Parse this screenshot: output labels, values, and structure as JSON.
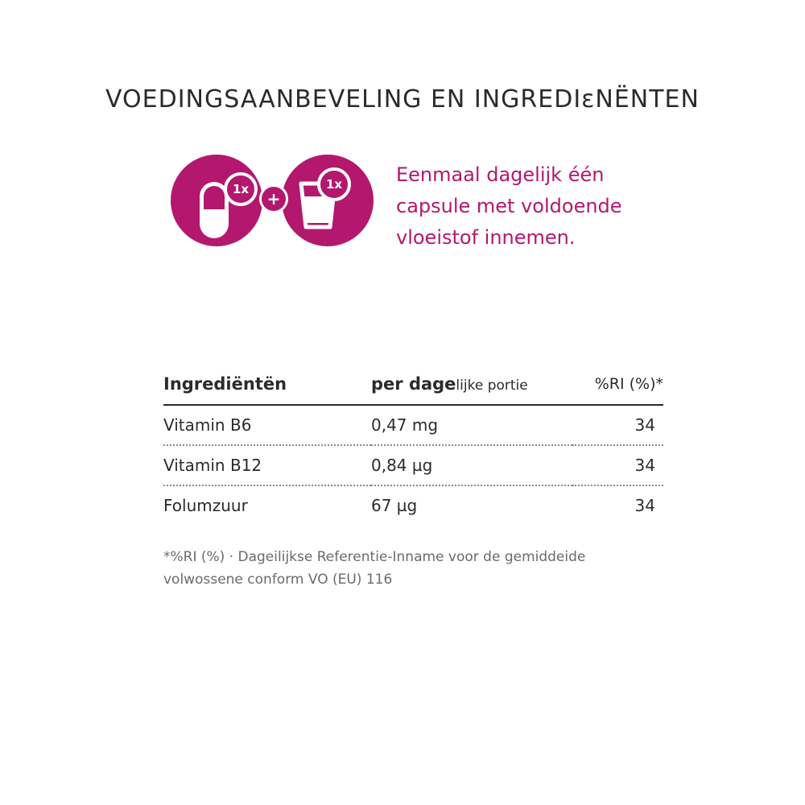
{
  "colors": {
    "accent": "#b3186e",
    "text": "#2b2b2b",
    "muted": "#6b6b6b"
  },
  "title": "VOEDINGSAANBEVELING EN INGREDIɛNËNTEN",
  "dosage": {
    "capsule_icon": "capsule-icon",
    "glass_icon": "glass-of-water-icon",
    "capsule_badge": "1x",
    "glass_badge": "1x",
    "plus": "+",
    "text": "Eenmaal dagelijk  één\ncapsule met voldoende\nvloeistof innemen."
  },
  "table": {
    "headers": {
      "name": "Ingrediëntën",
      "amount_bold": "per dage",
      "amount_light": "lijke portie",
      "ri": "%RI (%)*"
    },
    "rows": [
      {
        "name": "Vitamin B6",
        "amount": "0,47 mg",
        "ri": "34"
      },
      {
        "name": "Vitamin B12",
        "amount": "0,84 µg",
        "ri": "34"
      },
      {
        "name": "Folumzuur",
        "amount": "67 µg",
        "ri": "34"
      }
    ]
  },
  "footnote": "*%RI (%) · Dageilijkse Referentie-Inname voor de gemiddeide\nvolwossene conform VO (EU) 116"
}
